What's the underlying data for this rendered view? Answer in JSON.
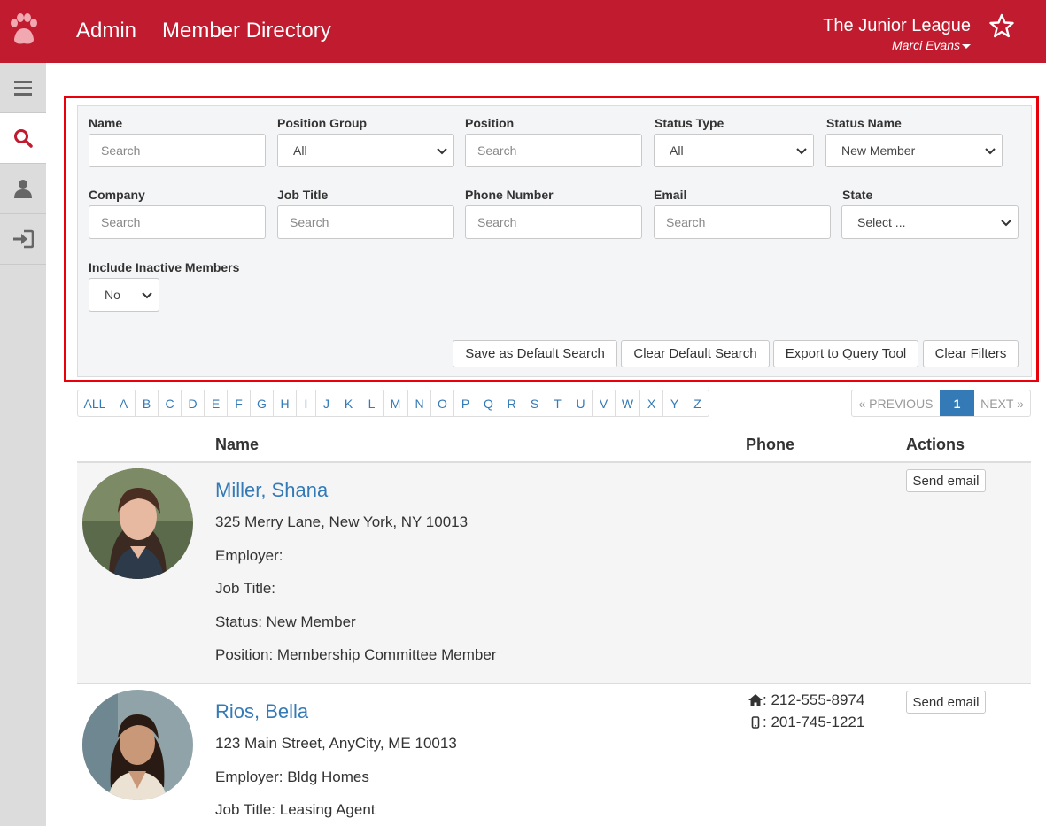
{
  "header": {
    "admin_label": "Admin",
    "page_title": "Member Directory",
    "org_name": "The Junior League",
    "user_name": "Marci Evans",
    "brand_color": "#c01b2e"
  },
  "sidebar": {
    "items": [
      {
        "icon": "menu-icon",
        "active": false
      },
      {
        "icon": "search-icon",
        "active": true
      },
      {
        "icon": "user-icon",
        "active": false
      },
      {
        "icon": "sign-in-icon",
        "active": false
      }
    ]
  },
  "filters": {
    "name": {
      "label": "Name",
      "placeholder": "Search"
    },
    "position_group": {
      "label": "Position Group",
      "value": "All"
    },
    "position": {
      "label": "Position",
      "placeholder": "Search"
    },
    "status_type": {
      "label": "Status Type",
      "value": "All"
    },
    "status_name": {
      "label": "Status Name",
      "value": "New Member"
    },
    "company": {
      "label": "Company",
      "placeholder": "Search"
    },
    "job_title": {
      "label": "Job Title",
      "placeholder": "Search"
    },
    "phone_number": {
      "label": "Phone Number",
      "placeholder": "Search"
    },
    "email": {
      "label": "Email",
      "placeholder": "Search"
    },
    "state": {
      "label": "State",
      "value": "Select ..."
    },
    "include_inactive": {
      "label": "Include Inactive Members",
      "value": "No"
    },
    "buttons": {
      "save_default": "Save as Default Search",
      "clear_default": "Clear Default Search",
      "export": "Export to Query Tool",
      "clear_filters": "Clear Filters"
    }
  },
  "alphabet": [
    "ALL",
    "A",
    "B",
    "C",
    "D",
    "E",
    "F",
    "G",
    "H",
    "I",
    "J",
    "K",
    "L",
    "M",
    "N",
    "O",
    "P",
    "Q",
    "R",
    "S",
    "T",
    "U",
    "V",
    "W",
    "X",
    "Y",
    "Z"
  ],
  "pagination": {
    "previous": "« PREVIOUS",
    "current": "1",
    "next": "NEXT »"
  },
  "table": {
    "headers": {
      "name": "Name",
      "phone": "Phone",
      "actions": "Actions"
    },
    "send_email_label": "Send email",
    "members": [
      {
        "name": "Miller, Shana",
        "address": "325 Merry Lane, New York, NY 10013",
        "employer": "Employer:",
        "job_title": "Job Title:",
        "status": "Status: New Member",
        "position": "Position: Membership Committee Member",
        "home_phone": "",
        "mobile_phone": ""
      },
      {
        "name": "Rios, Bella",
        "address": "123 Main Street, AnyCity, ME 10013",
        "employer": "Employer: Bldg Homes",
        "job_title": "Job Title: Leasing Agent",
        "home_phone": ": 212-555-8974",
        "mobile_phone": ": 201-745-1221"
      }
    ]
  }
}
